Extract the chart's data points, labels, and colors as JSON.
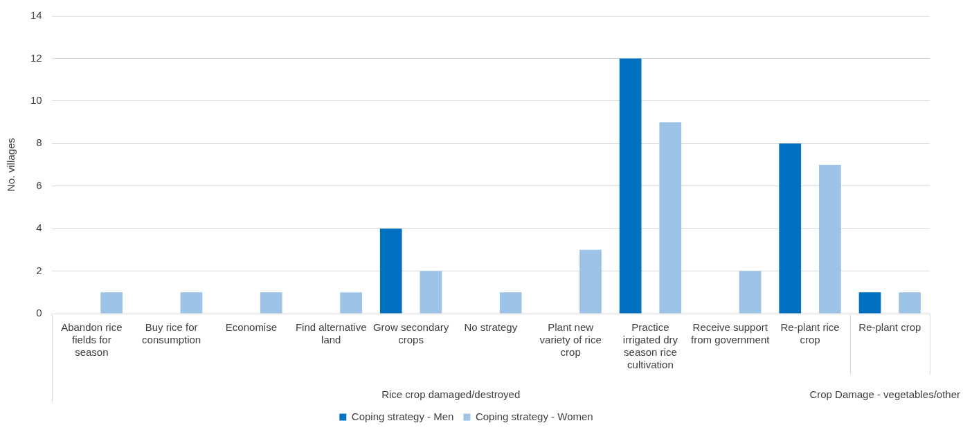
{
  "chart_data": {
    "type": "bar",
    "ylabel": "No. villages",
    "categories": [
      "Abandon rice fields for season",
      "Buy rice for consumption",
      "Economise",
      "Find alternative land",
      "Grow secondary crops",
      "No strategy",
      "Plant new variety of rice crop",
      "Practice irrigated dry season rice cultivation",
      "Receive support from government",
      "Re-plant rice crop",
      "Re-plant crop"
    ],
    "series": [
      {
        "name": "Coping strategy - Men",
        "color": "#0070c0",
        "values": [
          null,
          null,
          null,
          null,
          4,
          null,
          null,
          12,
          null,
          8,
          1
        ]
      },
      {
        "name": "Coping strategy - Women",
        "color": "#9dc3e6",
        "values": [
          1,
          1,
          1,
          1,
          2,
          1,
          3,
          9,
          2,
          7,
          1
        ]
      }
    ],
    "ylim": [
      0,
      14
    ],
    "yticks": [
      0,
      2,
      4,
      6,
      8,
      10,
      12,
      14
    ],
    "grid": "y",
    "legend": "bottom",
    "annotations": [
      "Rice crop damaged/destroyed",
      "Crop Damage - vegetables/other"
    ]
  }
}
